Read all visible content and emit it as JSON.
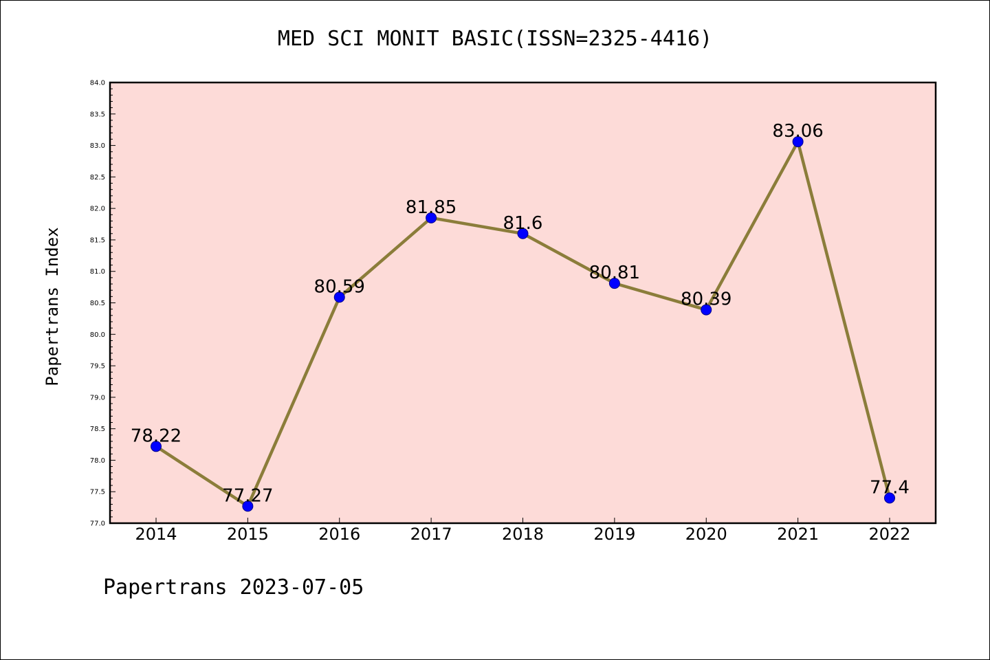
{
  "chart_data": {
    "type": "line",
    "title": "MED SCI MONIT BASIC(ISSN=2325-4416)",
    "ylabel": "Papertrans Index",
    "xlabel": "",
    "categories": [
      "2014",
      "2015",
      "2016",
      "2017",
      "2018",
      "2019",
      "2020",
      "2021",
      "2022"
    ],
    "series": [
      {
        "values": [
          78.22,
          77.27,
          80.59,
          81.85,
          81.6,
          80.81,
          80.39,
          83.06,
          77.4
        ],
        "data_labels": [
          "78.22",
          "77.27",
          "80.59",
          "81.85",
          "81.6",
          "80.81",
          "80.39",
          "83.06",
          "77.4"
        ]
      }
    ],
    "ylim": [
      77.0,
      84.0
    ],
    "yticks": [
      "77.0",
      "77.5",
      "78.0",
      "78.5",
      "79.0",
      "79.5",
      "80.0",
      "80.5",
      "81.0",
      "81.5",
      "82.0",
      "82.5",
      "83.0",
      "83.5",
      "84.0"
    ],
    "grid": false,
    "legend": "none",
    "colors": {
      "plot_background": "#fddbd8",
      "line": "#8b7d3a",
      "marker": "#0000ff",
      "marker_edge": "#00008b"
    }
  },
  "footer": "Papertrans 2023-07-05"
}
